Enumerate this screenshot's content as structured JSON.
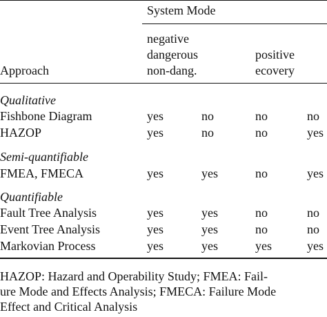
{
  "table": {
    "header": {
      "system_mode": "System Mode",
      "approach": "Approach",
      "negative_line1": "negative",
      "negative_line2": "dangerous",
      "negative_line3": "non-dang.",
      "positive_line1": "positive",
      "positive_line2": "ecovery"
    },
    "groups": [
      {
        "label": "Qualitative",
        "rows": [
          {
            "approach": "Fishbone Diagram",
            "values": [
              "yes",
              "no",
              "no",
              "no"
            ]
          },
          {
            "approach": "HAZOP",
            "values": [
              "yes",
              "no",
              "no",
              "yes"
            ]
          }
        ]
      },
      {
        "label": "Semi-quantifiable",
        "rows": [
          {
            "approach": "FMEA, FMECA",
            "values": [
              "yes",
              "yes",
              "no",
              "yes"
            ]
          }
        ]
      },
      {
        "label": "Quantifiable",
        "rows": [
          {
            "approach": "Fault Tree Analysis",
            "values": [
              "yes",
              "yes",
              "no",
              "no"
            ]
          },
          {
            "approach": "Event Tree Analysis",
            "values": [
              "yes",
              "yes",
              "no",
              "no"
            ]
          },
          {
            "approach": "Markovian Process",
            "values": [
              "yes",
              "yes",
              "yes",
              "yes"
            ]
          }
        ]
      }
    ]
  },
  "caption": {
    "line1": "HAZOP: Hazard and Operability Study; FMEA: Fail-",
    "line2": "ure Mode and Effects Analysis; FMECA: Failure Mode",
    "line3": "Effect and Critical Analysis"
  }
}
